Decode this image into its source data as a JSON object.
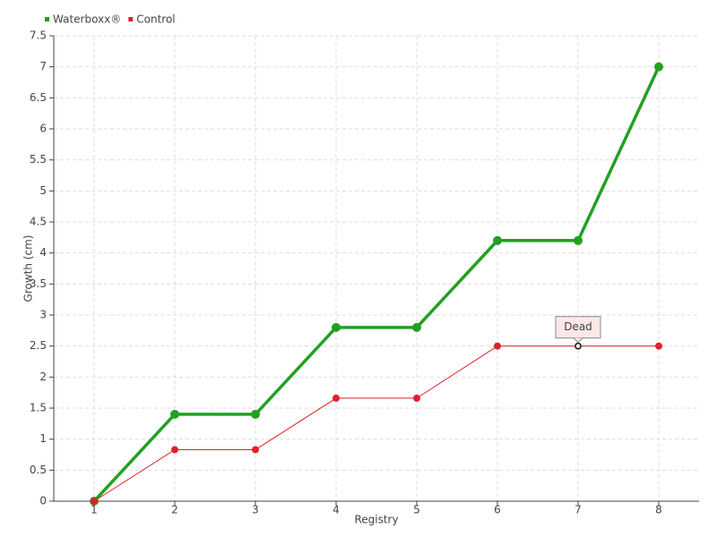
{
  "chart_data": {
    "type": "line",
    "x": [
      1,
      2,
      3,
      4,
      5,
      6,
      7,
      8
    ],
    "series": [
      {
        "name": "Waterboxx®",
        "color": "#22a022",
        "values": [
          0,
          1.4,
          1.4,
          2.8,
          2.8,
          4.2,
          4.2,
          7
        ]
      },
      {
        "name": "Control",
        "color": "#e0202c",
        "values": [
          0,
          0.83,
          0.83,
          1.66,
          1.66,
          2.5,
          2.5,
          2.5
        ]
      }
    ],
    "xlabel": "Registry",
    "ylabel": "Growth (cm)",
    "xlim": [
      0.5,
      8.5
    ],
    "xticks": [
      1,
      2,
      3,
      4,
      5,
      6,
      7,
      8
    ],
    "ylim": [
      0,
      7.5
    ],
    "yticks": [
      0,
      0.5,
      1,
      1.5,
      2,
      2.5,
      3,
      3.5,
      4,
      4.5,
      5,
      5.5,
      6,
      6.5,
      7,
      7.5
    ],
    "grid": true,
    "legend": "top-left",
    "annotations": [
      {
        "text": "Dead",
        "x": 7,
        "y": 2.5
      }
    ]
  }
}
